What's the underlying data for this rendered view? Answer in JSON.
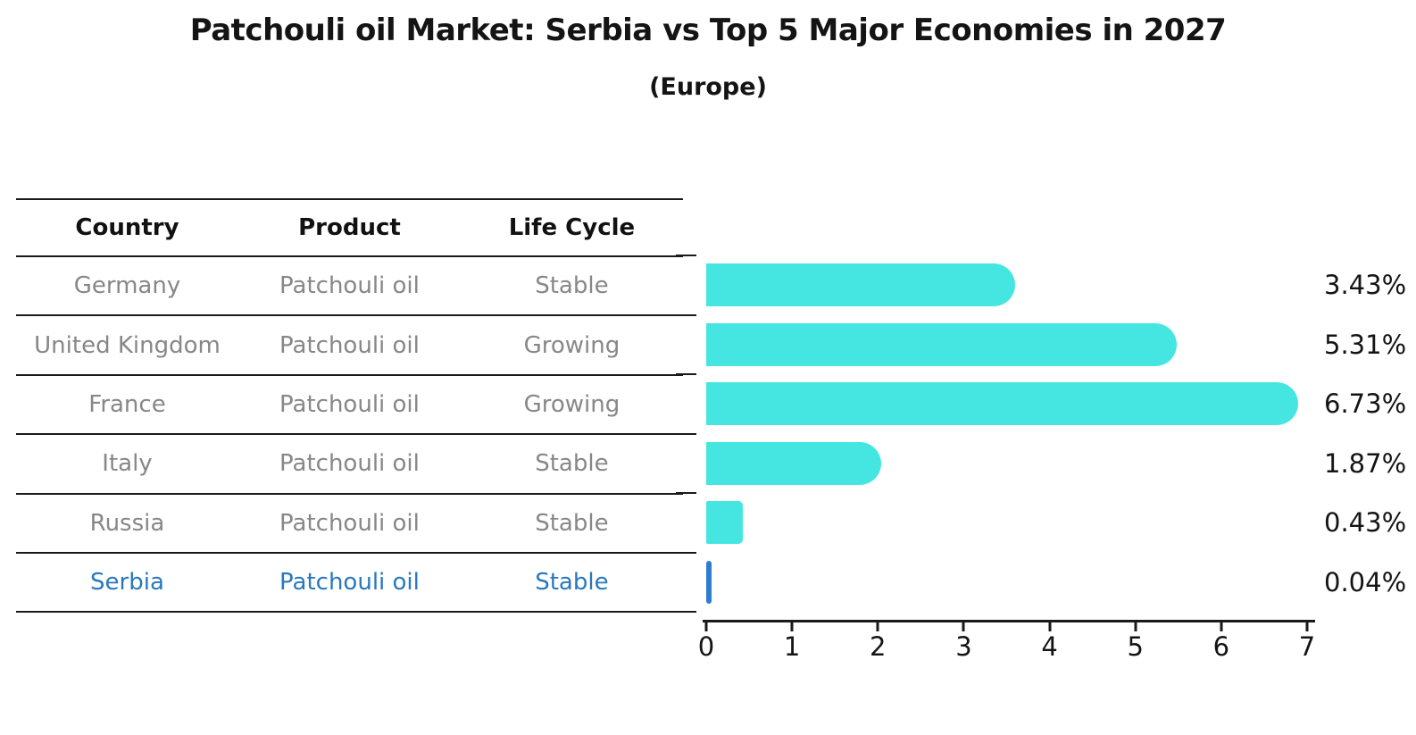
{
  "title": "Patchouli oil Market: Serbia vs Top 5 Major Economies in 2027",
  "subtitle": "(Europe)",
  "colors": {
    "bar": "#45e6e1",
    "highlight_bar": "#2e7cd1",
    "highlight_text": "#2878be",
    "row_text": "#878787",
    "header_text": "#111111",
    "axis": "#1a1a1a"
  },
  "table": {
    "headers": [
      "Country",
      "Product",
      "Life Cycle"
    ],
    "rows": [
      {
        "country": "Germany",
        "product": "Patchouli oil",
        "life_cycle": "Stable",
        "highlight": false
      },
      {
        "country": "United Kingdom",
        "product": "Patchouli oil",
        "life_cycle": "Growing",
        "highlight": false
      },
      {
        "country": "France",
        "product": "Patchouli oil",
        "life_cycle": "Growing",
        "highlight": false
      },
      {
        "country": "Italy",
        "product": "Patchouli oil",
        "life_cycle": "Stable",
        "highlight": false
      },
      {
        "country": "Russia",
        "product": "Patchouli oil",
        "life_cycle": "Stable",
        "highlight": false
      },
      {
        "country": "Serbia",
        "product": "Patchouli oil",
        "life_cycle": "Stable",
        "highlight": true
      }
    ]
  },
  "chart_data": {
    "type": "bar",
    "orientation": "horizontal",
    "title": "Patchouli oil Market: Serbia vs Top 5 Major Economies in 2027",
    "subtitle": "(Europe)",
    "categories": [
      "Germany",
      "United Kingdom",
      "France",
      "Italy",
      "Russia",
      "Serbia"
    ],
    "values": [
      3.43,
      5.31,
      6.73,
      1.87,
      0.43,
      0.04
    ],
    "labels": [
      "3.43%",
      "5.31%",
      "6.73%",
      "1.87%",
      "0.43%",
      "0.04%"
    ],
    "xlabel": "",
    "ylabel": "",
    "xlim": [
      0,
      7
    ],
    "xticks": [
      "0",
      "1",
      "2",
      "3",
      "4",
      "5",
      "6",
      "7"
    ],
    "grid": false,
    "legend": false,
    "highlight_index": 5,
    "bar_color": "#45e6e1",
    "highlight_color": "#2e7cd1"
  }
}
